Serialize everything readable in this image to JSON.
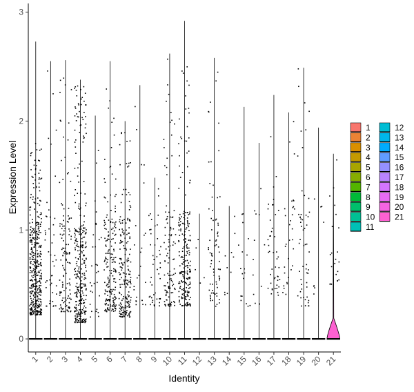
{
  "chart_data": {
    "type": "violin",
    "title": "",
    "xlabel": "Identity",
    "ylabel": "Expression Level",
    "ylim": [
      -0.12,
      3.08
    ],
    "yticks": [
      0,
      1,
      2,
      3
    ],
    "ytick_labels": [
      "0",
      "1",
      "2",
      "3"
    ],
    "grid": false,
    "legend_position": "right",
    "legend_columns": 2,
    "categories": [
      "1",
      "2",
      "3",
      "4",
      "5",
      "6",
      "7",
      "8",
      "9",
      "10",
      "11",
      "12",
      "13",
      "14",
      "15",
      "16",
      "17",
      "18",
      "19",
      "20",
      "21"
    ],
    "colors": [
      "#F8766D",
      "#EB8335",
      "#DA8F00",
      "#C49A00",
      "#A9A400",
      "#86AC00",
      "#53B400",
      "#00BA38",
      "#00BE6C",
      "#00C094",
      "#00C0B6",
      "#00BDD4",
      "#00B6EB",
      "#00ABFD",
      "#619CFF",
      "#9590FF",
      "#B983FF",
      "#D575FE",
      "#E76BF3",
      "#F464E2",
      "#FD61D1"
    ],
    "violin_max": [
      2.73,
      2.55,
      2.56,
      2.38,
      2.05,
      2.55,
      2.0,
      2.33,
      1.48,
      2.62,
      2.92,
      1.15,
      2.58,
      1.22,
      2.13,
      1.8,
      2.24,
      2.08,
      2.49,
      1.94,
      1.7
    ],
    "nonzero_counts": [
      420,
      45,
      130,
      320,
      30,
      190,
      200,
      25,
      45,
      110,
      220,
      5,
      75,
      10,
      18,
      12,
      45,
      32,
      55,
      8,
      22
    ],
    "point_ranges": [
      [
        0.22,
        1.8
      ],
      [
        0.3,
        2.5
      ],
      [
        0.25,
        2.5
      ],
      [
        0.15,
        2.35
      ],
      [
        0.2,
        2.0
      ],
      [
        0.25,
        2.3
      ],
      [
        0.2,
        1.9
      ],
      [
        0.3,
        2.3
      ],
      [
        0.3,
        1.45
      ],
      [
        0.3,
        2.6
      ],
      [
        0.3,
        2.6
      ],
      [
        0.5,
        1.2
      ],
      [
        0.3,
        2.5
      ],
      [
        0.4,
        1.2
      ],
      [
        0.3,
        2.1
      ],
      [
        0.3,
        1.8
      ],
      [
        0.4,
        2.2
      ],
      [
        0.4,
        2.1
      ],
      [
        0.3,
        2.5
      ],
      [
        0.4,
        1.9
      ],
      [
        0.5,
        1.7
      ]
    ],
    "series": [
      {
        "category": "21",
        "violin_width_at_zero": 0.45,
        "note_shape": "bulb"
      }
    ]
  }
}
